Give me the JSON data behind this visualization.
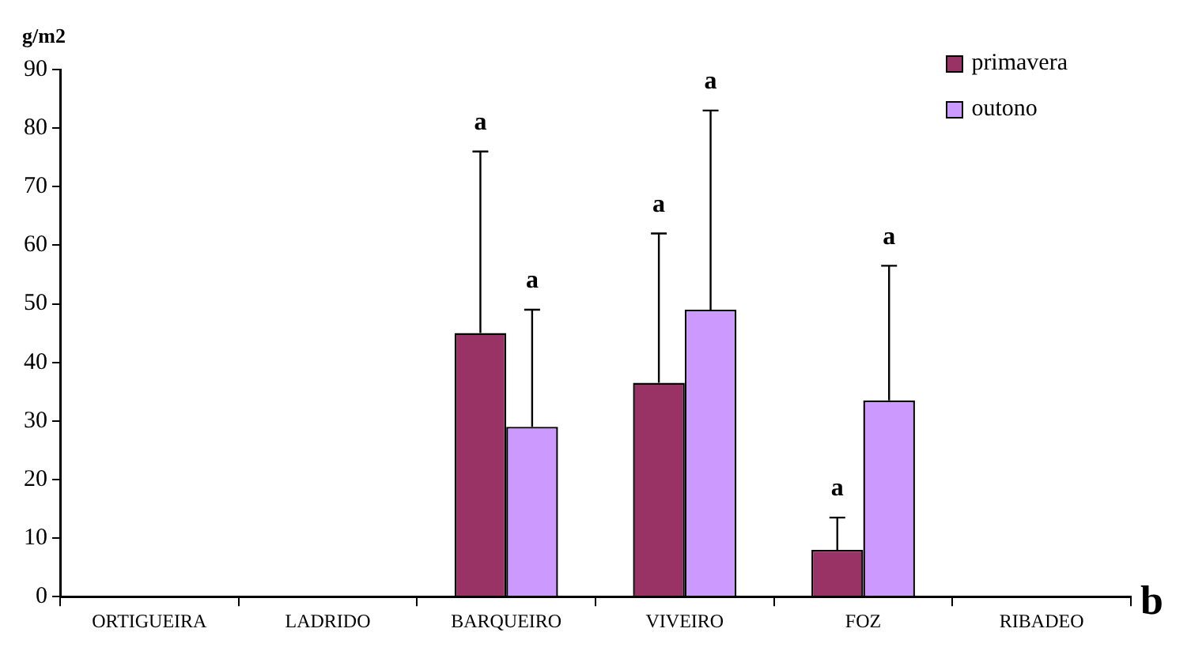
{
  "chart_data": {
    "type": "bar",
    "ylabel": "g/m2",
    "categories": [
      "ORTIGUEIRA",
      "LADRIDO",
      "BARQUEIRO",
      "VIVEIRO",
      "FOZ",
      "RIBADEO"
    ],
    "series": [
      {
        "name": "primavera",
        "color": "#993366",
        "values": [
          null,
          null,
          45,
          36.5,
          8,
          null
        ],
        "errors": [
          null,
          null,
          [
            45,
            76
          ],
          [
            36.5,
            62
          ],
          [
            8,
            13.5
          ],
          null
        ]
      },
      {
        "name": "outono",
        "color": "#cc99ff",
        "values": [
          null,
          null,
          29,
          49,
          33.5,
          null
        ],
        "errors": [
          null,
          null,
          [
            29,
            49
          ],
          [
            49,
            83
          ],
          [
            33.5,
            56.5
          ],
          null
        ]
      }
    ],
    "ylim": [
      0,
      90
    ],
    "yticks": [
      0,
      10,
      20,
      30,
      40,
      50,
      60,
      70,
      80,
      90
    ],
    "grid": false,
    "legend": "top right",
    "annotations": [
      "a",
      "a",
      "a",
      "a",
      "a",
      "a",
      "b"
    ]
  }
}
